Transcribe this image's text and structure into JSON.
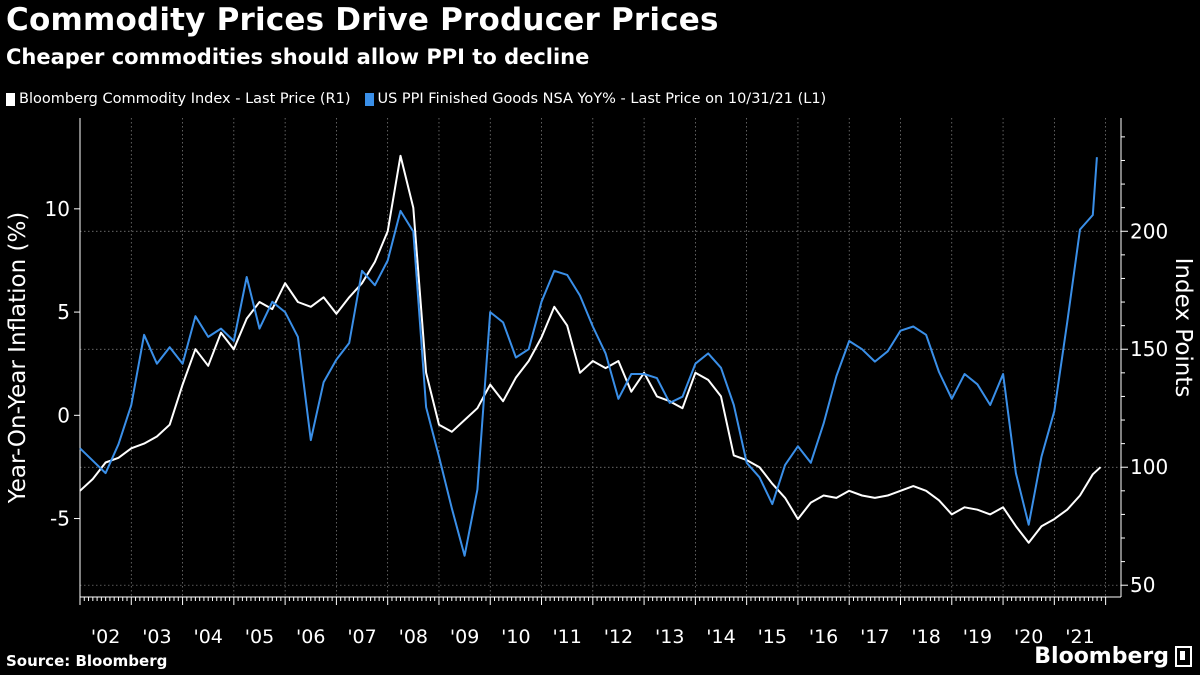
{
  "header": {
    "title": "Commodity Prices Drive Producer Prices",
    "subtitle": "Cheaper commodities should allow PPI to decline"
  },
  "footer": {
    "source": "Source: Bloomberg",
    "brand": "Bloomberg"
  },
  "colors": {
    "background": "#000000",
    "bcom": "#ffffff",
    "ppi": "#3a8fe8",
    "grid": "#8a8a8a"
  },
  "chart_data": {
    "type": "line",
    "title": "Commodity Prices Drive Producer Prices",
    "subtitle": "Cheaper commodities should allow PPI to decline",
    "ylabel_left": "Year-On-Year Inflation (%)",
    "ylabel_right": "Index Points",
    "ylim_left": [
      -8.8,
      14.4
    ],
    "ylim_right": [
      45,
      248
    ],
    "yticks_left": [
      -5,
      0,
      5,
      10
    ],
    "yticks_right": [
      50,
      100,
      150,
      200
    ],
    "left_tick_labels": [
      "-5",
      "0",
      "5",
      "10"
    ],
    "right_tick_labels": [
      "50",
      "100",
      "150",
      "200"
    ],
    "x_tick_labels": [
      "'02",
      "'03",
      "'04",
      "'05",
      "'06",
      "'07",
      "'08",
      "'09",
      "'10",
      "'11",
      "'12",
      "'13",
      "'14",
      "'15",
      "'16",
      "'17",
      "'18",
      "'19",
      "'20",
      "'21"
    ],
    "xlim": [
      2002.0,
      2022.3
    ],
    "grid": true,
    "legend_position": "top-left",
    "series": [
      {
        "name": "Bloomberg Commodity Index - Last Price (R1)",
        "axis": "right",
        "x": [
          2002.0,
          2002.25,
          2002.5,
          2002.75,
          2003.0,
          2003.25,
          2003.5,
          2003.75,
          2004.0,
          2004.25,
          2004.5,
          2004.75,
          2005.0,
          2005.25,
          2005.5,
          2005.75,
          2006.0,
          2006.25,
          2006.5,
          2006.75,
          2007.0,
          2007.25,
          2007.5,
          2007.75,
          2008.0,
          2008.25,
          2008.5,
          2008.75,
          2009.0,
          2009.25,
          2009.5,
          2009.75,
          2010.0,
          2010.25,
          2010.5,
          2010.75,
          2011.0,
          2011.25,
          2011.5,
          2011.75,
          2012.0,
          2012.25,
          2012.5,
          2012.75,
          2013.0,
          2013.25,
          2013.5,
          2013.75,
          2014.0,
          2014.25,
          2014.5,
          2014.75,
          2015.0,
          2015.25,
          2015.5,
          2015.75,
          2016.0,
          2016.25,
          2016.5,
          2016.75,
          2017.0,
          2017.25,
          2017.5,
          2017.75,
          2018.0,
          2018.25,
          2018.5,
          2018.75,
          2019.0,
          2019.25,
          2019.5,
          2019.75,
          2020.0,
          2020.25,
          2020.5,
          2020.75,
          2021.0,
          2021.25,
          2021.5,
          2021.75,
          2021.9
        ],
        "values": [
          90,
          95,
          102,
          104,
          108,
          110,
          113,
          118,
          135,
          150,
          143,
          157,
          150,
          163,
          170,
          167,
          178,
          170,
          168,
          172,
          165,
          172,
          178,
          187,
          200,
          232,
          210,
          140,
          118,
          115,
          120,
          125,
          135,
          128,
          138,
          145,
          155,
          168,
          160,
          140,
          145,
          142,
          145,
          132,
          140,
          130,
          128,
          125,
          140,
          137,
          130,
          105,
          103,
          100,
          93,
          87,
          78,
          85,
          88,
          87,
          90,
          88,
          87,
          88,
          90,
          92,
          90,
          86,
          80,
          83,
          82,
          80,
          83,
          75,
          68,
          75,
          78,
          82,
          88,
          97,
          100
        ]
      },
      {
        "name": "US PPI Finished Goods NSA YoY% - Last Price on 10/31/21 (L1)",
        "axis": "left",
        "x": [
          2002.0,
          2002.25,
          2002.5,
          2002.75,
          2003.0,
          2003.25,
          2003.5,
          2003.75,
          2004.0,
          2004.25,
          2004.5,
          2004.75,
          2005.0,
          2005.25,
          2005.5,
          2005.75,
          2006.0,
          2006.25,
          2006.5,
          2006.75,
          2007.0,
          2007.25,
          2007.5,
          2007.75,
          2008.0,
          2008.25,
          2008.5,
          2008.75,
          2009.0,
          2009.25,
          2009.5,
          2009.75,
          2010.0,
          2010.25,
          2010.5,
          2010.75,
          2011.0,
          2011.25,
          2011.5,
          2011.75,
          2012.0,
          2012.25,
          2012.5,
          2012.75,
          2013.0,
          2013.25,
          2013.5,
          2013.75,
          2014.0,
          2014.25,
          2014.5,
          2014.75,
          2015.0,
          2015.25,
          2015.5,
          2015.75,
          2016.0,
          2016.25,
          2016.5,
          2016.75,
          2017.0,
          2017.25,
          2017.5,
          2017.75,
          2018.0,
          2018.25,
          2018.5,
          2018.75,
          2019.0,
          2019.25,
          2019.5,
          2019.75,
          2020.0,
          2020.25,
          2020.5,
          2020.75,
          2021.0,
          2021.25,
          2021.5,
          2021.75,
          2021.83
        ],
        "values": [
          -1.6,
          -2.2,
          -2.8,
          -1.4,
          0.5,
          3.9,
          2.5,
          3.3,
          2.5,
          4.8,
          3.8,
          4.2,
          3.6,
          6.7,
          4.2,
          5.5,
          5.0,
          3.8,
          -1.2,
          1.6,
          2.7,
          3.5,
          7.0,
          6.3,
          7.5,
          9.9,
          8.9,
          0.4,
          -2.0,
          -4.5,
          -6.8,
          -3.6,
          5.0,
          4.5,
          2.8,
          3.2,
          5.5,
          7.0,
          6.8,
          5.8,
          4.3,
          3.0,
          0.8,
          2.0,
          2.0,
          1.8,
          0.6,
          0.9,
          2.5,
          3.0,
          2.3,
          0.5,
          -2.3,
          -3.0,
          -4.3,
          -2.4,
          -1.5,
          -2.3,
          -0.4,
          1.9,
          3.6,
          3.2,
          2.6,
          3.1,
          4.1,
          4.3,
          3.9,
          2.1,
          0.8,
          2.0,
          1.5,
          0.5,
          2.0,
          -2.8,
          -5.3,
          -2.0,
          0.2,
          4.5,
          9.0,
          9.7,
          12.5
        ]
      }
    ]
  }
}
